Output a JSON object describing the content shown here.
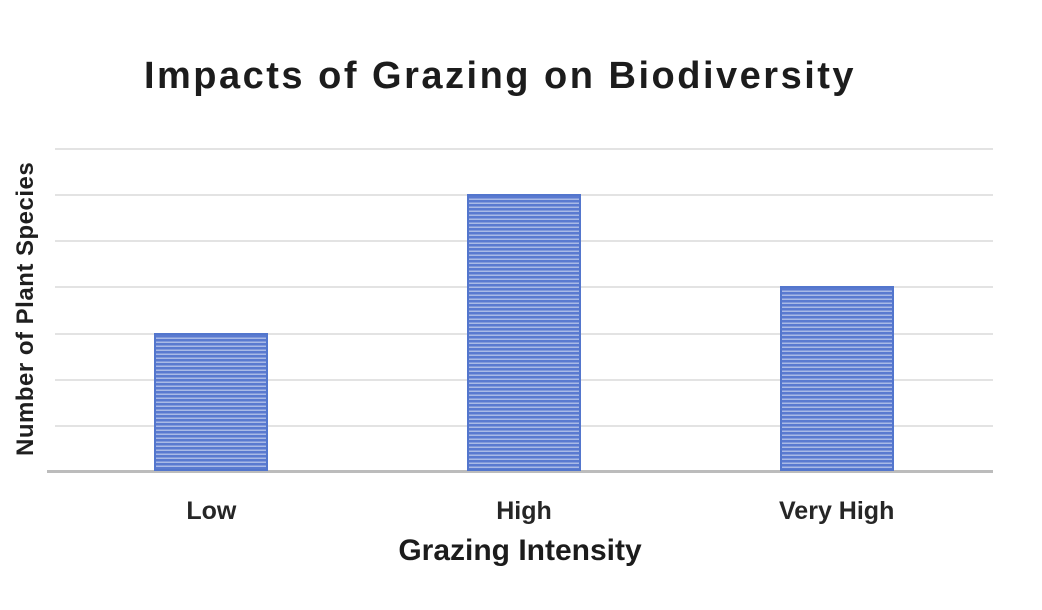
{
  "chart_data": {
    "type": "bar",
    "title": "Impacts of Grazing on Biodiversity",
    "xlabel": "Grazing Intensity",
    "ylabel": "Number of Plant Species",
    "categories": [
      "Low",
      "High",
      "Very High"
    ],
    "values": [
      3,
      6,
      4
    ],
    "ylim": [
      0,
      7
    ],
    "gridline_count": 7,
    "grid": "horizontal gridlines on, no vertical gridlines",
    "y_tick_labels": "none visible",
    "legend": "none",
    "note": "Y axis has no numeric tick labels; values are expressed in gridline units (7 equal gridline intervals above the baseline). Bar tops align with gridlines: Low = 3 units, High = 6 units, Very High = 4 units.",
    "bar_style": "horizontal blue stripe pattern fill with solid blue border",
    "colors": {
      "bar_stripe_dark": "#5a7ad0",
      "bar_stripe_light": "#a9bae6",
      "bar_border": "#5376cd",
      "gridline": "#e3e3e3",
      "axis_line": "#bcbcbc",
      "text": "#1c1c1c",
      "background": "#ffffff"
    }
  }
}
